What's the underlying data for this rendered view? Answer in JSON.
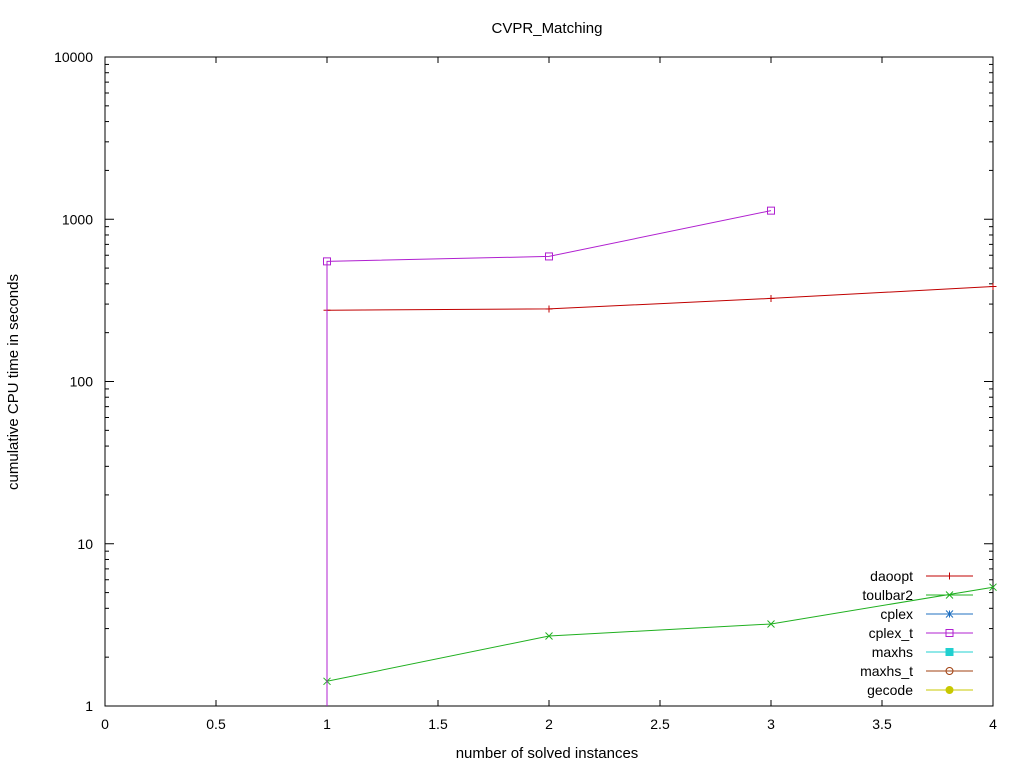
{
  "chart_data": {
    "type": "line",
    "title": "CVPR_Matching",
    "xlabel": "number of solved instances",
    "ylabel": "cumulative CPU time in seconds",
    "xlim": [
      0,
      4
    ],
    "ylim": [
      1,
      10000
    ],
    "y_scale": "log",
    "x_ticks": [
      0,
      0.5,
      1,
      1.5,
      2,
      2.5,
      3,
      3.5,
      4
    ],
    "x_tick_labels": [
      "0",
      "0.5",
      "1",
      "1.5",
      "2",
      "2.5",
      "3",
      "3.5",
      "4"
    ],
    "y_ticks": [
      1,
      10,
      100,
      1000,
      10000
    ],
    "y_tick_labels": [
      "1",
      "10",
      "100",
      "1000",
      "10000"
    ],
    "grid": false,
    "legend_position": "bottom-right",
    "series": [
      {
        "name": "daoopt",
        "color": "#c00000",
        "marker": "plus",
        "x": [
          1,
          2,
          3,
          4
        ],
        "y": [
          275,
          280,
          325,
          385
        ]
      },
      {
        "name": "toulbar2",
        "color": "#20b020",
        "marker": "cross",
        "x": [
          1,
          2,
          3,
          4
        ],
        "y": [
          1.42,
          2.7,
          3.2,
          5.4
        ]
      },
      {
        "name": "cplex",
        "color": "#2070c0",
        "marker": "star",
        "x": [],
        "y": []
      },
      {
        "name": "cplex_t",
        "color": "#b020d0",
        "marker": "open-square",
        "x": [
          1,
          1,
          2,
          3
        ],
        "y": [
          1,
          550,
          590,
          1130
        ]
      },
      {
        "name": "maxhs",
        "color": "#20d0d0",
        "marker": "filled-square",
        "x": [],
        "y": []
      },
      {
        "name": "maxhs_t",
        "color": "#a04010",
        "marker": "open-circle",
        "x": [],
        "y": []
      },
      {
        "name": "gecode",
        "color": "#c8c800",
        "marker": "filled-circle",
        "x": [],
        "y": []
      }
    ]
  }
}
